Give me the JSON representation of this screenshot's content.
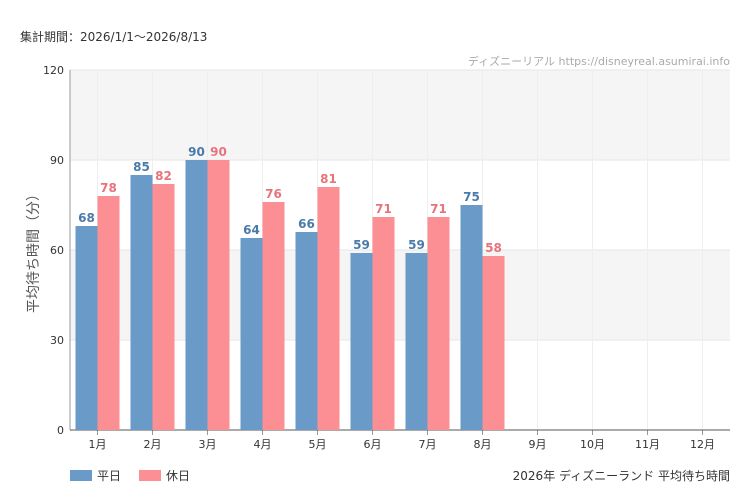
{
  "header": {
    "period": "集計期間：2026/1/1〜2026/8/13",
    "credit": "ディズニーリアル https://disneyreal.asumirai.info"
  },
  "caption": "2026年 ディズニーランド 平均待ち時間",
  "chart_data": {
    "type": "bar",
    "ylabel": "平均待ち時間（分）",
    "ylim": [
      0,
      120
    ],
    "yticks": [
      0,
      30,
      60,
      90,
      120
    ],
    "categories": [
      "1月",
      "2月",
      "3月",
      "4月",
      "5月",
      "6月",
      "7月",
      "8月",
      "9月",
      "10月",
      "11月",
      "12月"
    ],
    "series": [
      {
        "name": "平日",
        "color": "#6a9bc8",
        "label_color": "#4a7aaa",
        "values": [
          68,
          85,
          90,
          64,
          66,
          59,
          59,
          75,
          null,
          null,
          null,
          null
        ]
      },
      {
        "name": "休日",
        "color": "#fb8f94",
        "label_color": "#e8747b",
        "values": [
          78,
          82,
          90,
          76,
          81,
          71,
          71,
          58,
          null,
          null,
          null,
          null
        ]
      }
    ],
    "grid": true,
    "legend": "bottom-left"
  }
}
